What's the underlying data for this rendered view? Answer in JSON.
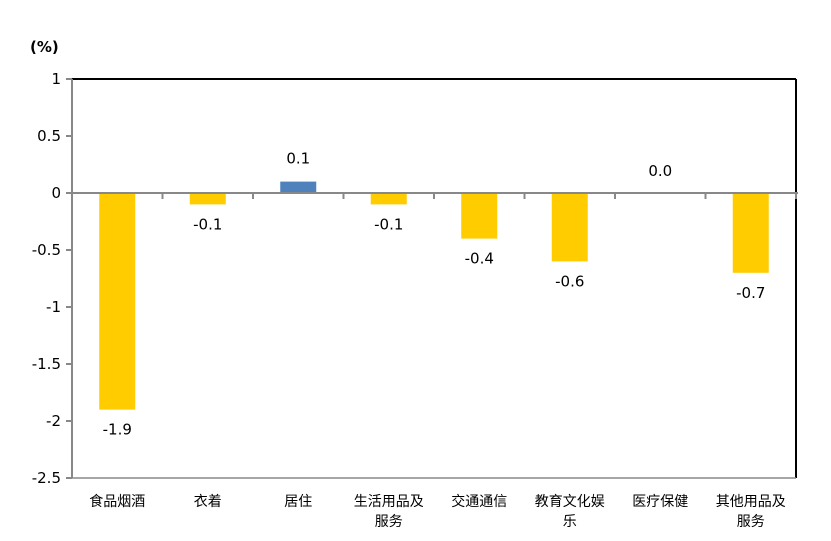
{
  "chart_data": {
    "type": "bar",
    "ylabel": "(%)",
    "categories": [
      [
        "食品烟酒"
      ],
      [
        "衣着"
      ],
      [
        "居住"
      ],
      [
        "生活用品及",
        "服务"
      ],
      [
        "交通通信"
      ],
      [
        "教育文化娱",
        "乐"
      ],
      [
        "医疗保健"
      ],
      [
        "其他用品及",
        "服务"
      ]
    ],
    "values": [
      -1.9,
      -0.1,
      0.1,
      -0.1,
      -0.4,
      -0.6,
      0.0,
      -0.7
    ],
    "data_labels": [
      "-1.9",
      "-0.1",
      "0.1",
      "-0.1",
      "-0.4",
      "-0.6",
      "0.0",
      "-0.7"
    ],
    "ylim": [
      -2.5,
      1
    ],
    "yticks": [
      1,
      0.5,
      0,
      -0.5,
      -1,
      -1.5,
      -2,
      -2.5
    ],
    "ytick_labels": [
      "1",
      "0.5",
      "0",
      "-0.5",
      "-1",
      "-1.5",
      "-2",
      "-2.5"
    ],
    "colors": {
      "negative": "#FFCC00",
      "positive": "#4F81BD"
    },
    "grid": false,
    "legend": "none"
  }
}
